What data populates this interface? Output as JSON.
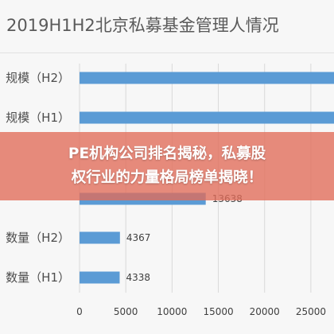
{
  "chart_data": {
    "type": "bar",
    "orientation": "horizontal",
    "title": "2019H1H2北京私募基金管理人情况",
    "categories": [
      "规模（H2）",
      "规模（H1）",
      "",
      "",
      "数量（H2）",
      "数量（H1）"
    ],
    "category_labels_visible": [
      "规模（H2）",
      "规模（H1）",
      "",
      "",
      "数量（H2）",
      "数量（H1）"
    ],
    "values": [
      27500,
      27500,
      null,
      13638,
      4367,
      4338
    ],
    "value_labels": [
      "",
      "",
      "",
      "13638",
      "4367",
      "4338"
    ],
    "xlim": [
      0,
      27500
    ],
    "xticks": [
      "0",
      "5000",
      "10000",
      "15000",
      "20000",
      "25000"
    ],
    "grid": true,
    "bar_color": "#5b9bd5"
  },
  "overlay": {
    "line1": "PE机构公司排名揭秘，私募股",
    "line2": "权行业的力量格局榜单揭晓！"
  }
}
